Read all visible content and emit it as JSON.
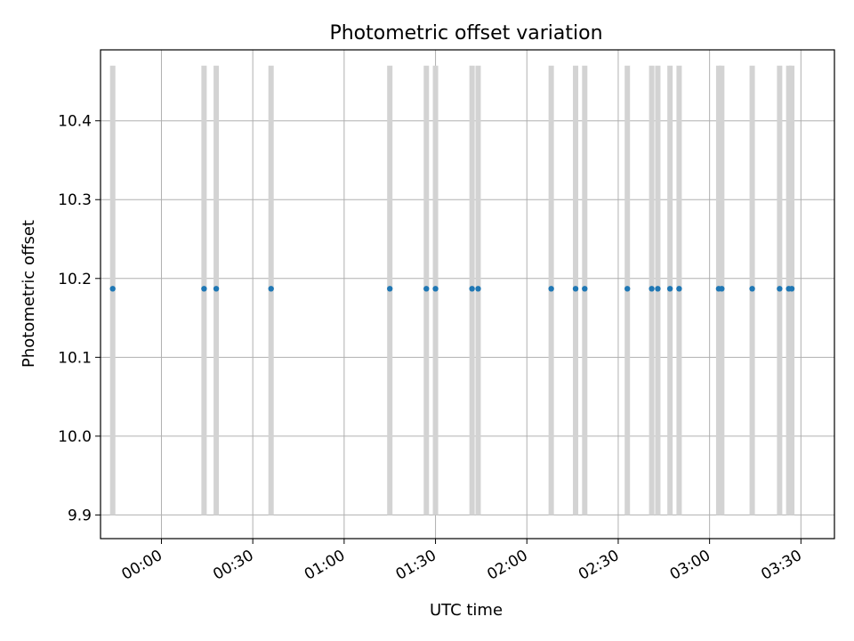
{
  "chart_data": {
    "type": "scatter",
    "title": "Photometric offset variation",
    "xlabel": "UTC time",
    "ylabel": "Photometric offset",
    "grid": true,
    "x_axis": {
      "kind": "time",
      "range": [
        "23:40",
        "03:41"
      ],
      "ticks": [
        "00:00",
        "00:30",
        "01:00",
        "01:30",
        "02:00",
        "02:30",
        "03:00",
        "03:30"
      ]
    },
    "y_axis": {
      "range": [
        9.87,
        10.49
      ],
      "ticks": [
        "9.9",
        "10.0",
        "10.1",
        "10.2",
        "10.3",
        "10.4"
      ]
    },
    "series": [
      {
        "marker": "dot",
        "color": "#1f77b4",
        "errorbar_color": "#d3d3d3",
        "errorbar_range": [
          9.9,
          10.47
        ],
        "points": [
          {
            "x": "23:44",
            "y": 10.187
          },
          {
            "x": "00:14",
            "y": 10.187
          },
          {
            "x": "00:18",
            "y": 10.187
          },
          {
            "x": "00:36",
            "y": 10.187
          },
          {
            "x": "01:15",
            "y": 10.187
          },
          {
            "x": "01:27",
            "y": 10.187
          },
          {
            "x": "01:30",
            "y": 10.187
          },
          {
            "x": "01:42",
            "y": 10.187
          },
          {
            "x": "01:44",
            "y": 10.187
          },
          {
            "x": "02:08",
            "y": 10.187
          },
          {
            "x": "02:16",
            "y": 10.187
          },
          {
            "x": "02:19",
            "y": 10.187
          },
          {
            "x": "02:33",
            "y": 10.187
          },
          {
            "x": "02:41",
            "y": 10.187
          },
          {
            "x": "02:43",
            "y": 10.187
          },
          {
            "x": "02:47",
            "y": 10.187
          },
          {
            "x": "02:50",
            "y": 10.187
          },
          {
            "x": "03:03",
            "y": 10.187
          },
          {
            "x": "03:04",
            "y": 10.187
          },
          {
            "x": "03:14",
            "y": 10.187
          },
          {
            "x": "03:23",
            "y": 10.187
          },
          {
            "x": "03:26",
            "y": 10.187
          },
          {
            "x": "03:27",
            "y": 10.187
          }
        ]
      }
    ]
  }
}
